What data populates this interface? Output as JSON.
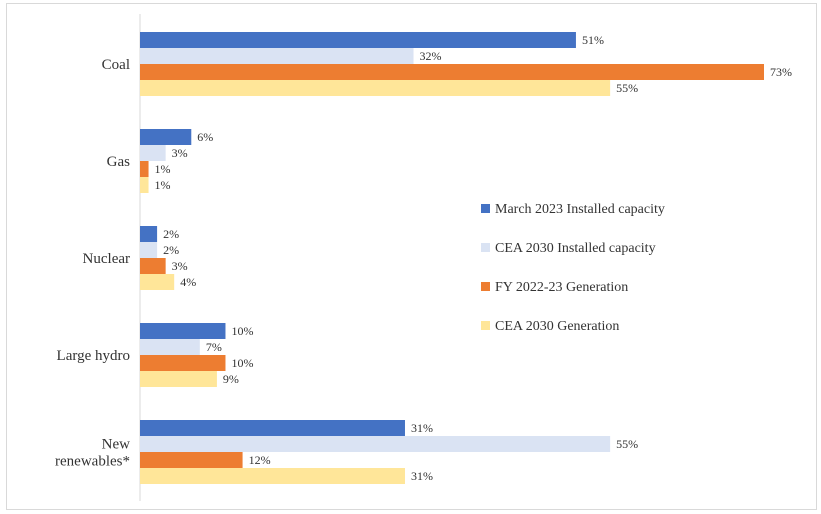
{
  "chart_data": {
    "type": "bar",
    "orientation": "horizontal",
    "categories": [
      [
        "Coal"
      ],
      [
        "Gas"
      ],
      [
        "Nuclear"
      ],
      [
        "Large hydro"
      ],
      [
        "New",
        "renewables*"
      ]
    ],
    "series": [
      {
        "name": "March 2023 Installed capacity",
        "color": "#4472c4",
        "values": [
          51,
          6,
          2,
          10,
          31
        ],
        "labels": [
          "51%",
          "6%",
          "2%",
          "10%",
          "31%"
        ]
      },
      {
        "name": "CEA 2030 Installed capacity",
        "color": "#dae3f3",
        "values": [
          32,
          3,
          2,
          7,
          55
        ],
        "labels": [
          "32%",
          "3%",
          "2%",
          "7%",
          "55%"
        ]
      },
      {
        "name": "FY 2022-23 Generation",
        "color": "#ed7d31",
        "values": [
          73,
          1,
          3,
          10,
          12
        ],
        "labels": [
          "73%",
          "1%",
          "3%",
          "10%",
          "12%"
        ]
      },
      {
        "name": "CEA 2030 Generation",
        "color": "#ffe699",
        "values": [
          55,
          1,
          4,
          9,
          31
        ],
        "labels": [
          "55%",
          "1%",
          "4%",
          "9%",
          "31%"
        ]
      }
    ],
    "xlim": [
      0,
      73
    ],
    "grid": false,
    "legend_position": "center-right"
  }
}
